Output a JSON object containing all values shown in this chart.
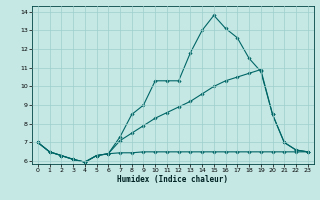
{
  "title": "",
  "xlabel": "Humidex (Indice chaleur)",
  "xlim": [
    0,
    23
  ],
  "ylim": [
    6,
    14
  ],
  "xticks": [
    0,
    1,
    2,
    3,
    4,
    5,
    6,
    7,
    8,
    9,
    10,
    11,
    12,
    13,
    14,
    15,
    16,
    17,
    18,
    19,
    20,
    21,
    22,
    23
  ],
  "yticks": [
    6,
    7,
    8,
    9,
    10,
    11,
    12,
    13,
    14
  ],
  "bg_color": "#c5e8e5",
  "grid_color": "#9ecfcc",
  "line_color": "#006666",
  "line1_x": [
    0,
    1,
    2,
    3,
    4,
    5,
    6,
    7,
    8,
    9,
    10,
    11,
    12,
    13,
    14,
    15,
    16,
    17,
    18,
    19,
    20,
    21,
    22,
    23
  ],
  "line1_y": [
    7.0,
    6.5,
    6.3,
    6.1,
    5.95,
    6.3,
    6.4,
    7.3,
    8.5,
    9.0,
    10.3,
    10.3,
    10.3,
    11.8,
    13.0,
    13.8,
    13.1,
    12.6,
    11.5,
    10.8,
    8.5,
    7.0,
    6.6,
    6.5
  ],
  "line2_x": [
    0,
    1,
    2,
    3,
    4,
    5,
    6,
    7,
    8,
    9,
    10,
    11,
    12,
    13,
    14,
    15,
    16,
    17,
    18,
    19,
    20,
    21,
    22,
    23
  ],
  "line2_y": [
    7.0,
    6.5,
    6.3,
    6.1,
    5.95,
    6.3,
    6.4,
    7.1,
    7.5,
    7.9,
    8.3,
    8.6,
    8.9,
    9.2,
    9.6,
    10.0,
    10.3,
    10.5,
    10.7,
    10.9,
    8.5,
    7.0,
    6.6,
    6.5
  ],
  "line3_x": [
    0,
    1,
    2,
    3,
    4,
    5,
    6,
    7,
    8,
    9,
    10,
    11,
    12,
    13,
    14,
    15,
    16,
    17,
    18,
    19,
    20,
    21,
    22,
    23
  ],
  "line3_y": [
    7.0,
    6.5,
    6.3,
    6.1,
    5.95,
    6.3,
    6.4,
    6.45,
    6.45,
    6.5,
    6.5,
    6.5,
    6.5,
    6.5,
    6.5,
    6.5,
    6.5,
    6.5,
    6.5,
    6.5,
    6.5,
    6.5,
    6.5,
    6.5
  ]
}
